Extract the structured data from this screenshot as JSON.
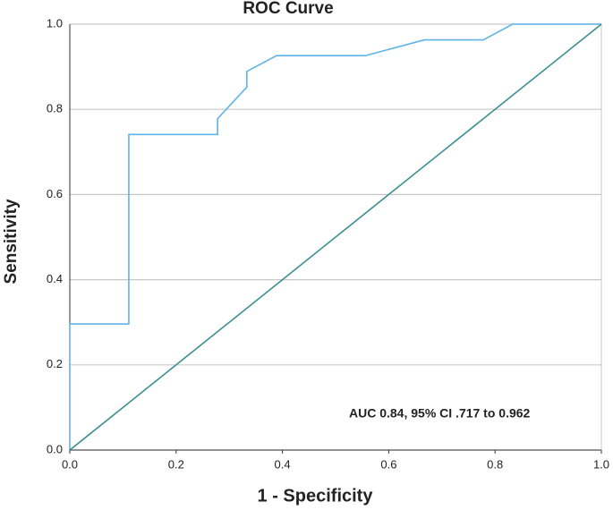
{
  "chart_data": {
    "type": "line",
    "title": "ROC Curve",
    "x_label": "1 - Specificity",
    "y_label": "Sensitivity",
    "annotation": "AUC 0.84, 95% CI .717 to 0.962",
    "series": [
      {
        "color": "#5fb3ea",
        "x": [
          0,
          0,
          0.111,
          0.111,
          0.278,
          0.278,
          0.333,
          0.333,
          0.389,
          0.556,
          0.667,
          0.778,
          0.833,
          1.0
        ],
        "values": [
          0,
          0.296,
          0.296,
          0.741,
          0.741,
          0.778,
          0.852,
          0.889,
          0.926,
          0.926,
          0.963,
          0.963,
          1.0,
          1.0
        ]
      },
      {
        "color": "#3a8f8f",
        "x": [
          0,
          1.0
        ],
        "values": [
          0,
          1.0
        ]
      }
    ],
    "xlim": [
      0,
      1
    ],
    "ylim": [
      0,
      1
    ],
    "xticks": [
      {
        "value": 0,
        "label": "0.0"
      },
      0.2,
      0.4,
      0.6,
      0.8,
      {
        "value": 1,
        "label": "1.0"
      }
    ],
    "yticks": [
      {
        "value": 0,
        "label": "0.0"
      },
      0.2,
      0.4,
      0.6,
      0.8,
      {
        "value": 1,
        "label": "1.0"
      }
    ],
    "grid": true
  }
}
